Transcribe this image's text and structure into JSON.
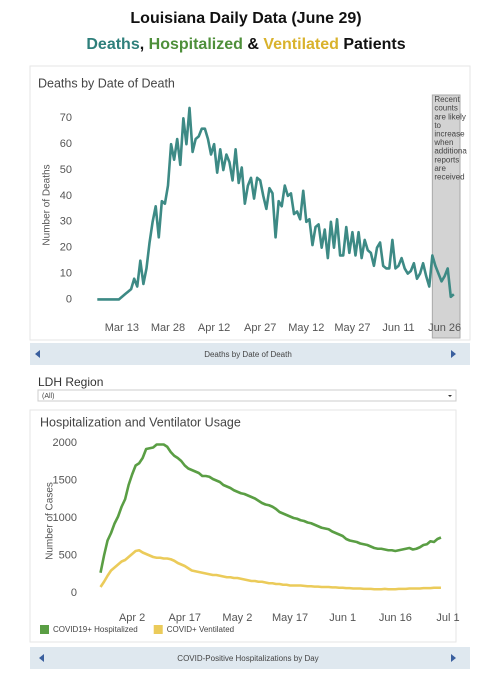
{
  "header": {
    "title": "Louisiana Daily Data (June 29)",
    "subtitle": [
      {
        "text": "Deaths",
        "color": "#2e7f7b"
      },
      {
        "text": ",",
        "color": "#111111"
      },
      {
        "text": "Hospitalized",
        "color": "#4e8f3a"
      },
      {
        "text": "&",
        "color": "#111111"
      },
      {
        "text": "Ventilated",
        "color": "#d9b22c"
      },
      {
        "text": "Patients",
        "color": "#111111"
      }
    ]
  },
  "navigation": [
    "Deaths by Date of Death",
    "COVID-Positive Hospitalizations by Day"
  ],
  "filter": {
    "label": "LDH Region",
    "value": "(All)"
  },
  "chart_data": [
    {
      "type": "line",
      "title": "Deaths by Date of Death",
      "y_label": "Number of Deaths",
      "x": [
        "Mar 5",
        "Mar 6",
        "Mar 7",
        "Mar 8",
        "Mar 9",
        "Mar 10",
        "Mar 11",
        "Mar 12",
        "Mar 13",
        "Mar 14",
        "Mar 15",
        "Mar 16",
        "Mar 17",
        "Mar 18",
        "Mar 19",
        "Mar 20",
        "Mar 21",
        "Mar 22",
        "Mar 23",
        "Mar 24",
        "Mar 25",
        "Mar 26",
        "Mar 27",
        "Mar 28",
        "Mar 29",
        "Mar 30",
        "Mar 31",
        "Apr 1",
        "Apr 2",
        "Apr 3",
        "Apr 4",
        "Apr 5",
        "Apr 6",
        "Apr 7",
        "Apr 8",
        "Apr 9",
        "Apr 10",
        "Apr 11",
        "Apr 12",
        "Apr 13",
        "Apr 14",
        "Apr 15",
        "Apr 16",
        "Apr 17",
        "Apr 18",
        "Apr 19",
        "Apr 20",
        "Apr 21",
        "Apr 22",
        "Apr 23",
        "Apr 24",
        "Apr 25",
        "Apr 26",
        "Apr 27",
        "Apr 28",
        "Apr 29",
        "Apr 30",
        "May 1",
        "May 2",
        "May 3",
        "May 4",
        "May 5",
        "May 6",
        "May 7",
        "May 8",
        "May 9",
        "May 10",
        "May 11",
        "May 12",
        "May 13",
        "May 14",
        "May 15",
        "May 16",
        "May 17",
        "May 18",
        "May 19",
        "May 20",
        "May 21",
        "May 22",
        "May 23",
        "May 24",
        "May 25",
        "May 26",
        "May 27",
        "May 28",
        "May 29",
        "May 30",
        "May 31",
        "Jun 1",
        "Jun 2",
        "Jun 3",
        "Jun 4",
        "Jun 5",
        "Jun 6",
        "Jun 7",
        "Jun 8",
        "Jun 9",
        "Jun 10",
        "Jun 11",
        "Jun 12",
        "Jun 13",
        "Jun 14",
        "Jun 15",
        "Jun 16",
        "Jun 17",
        "Jun 18",
        "Jun 19",
        "Jun 20",
        "Jun 21",
        "Jun 22",
        "Jun 23",
        "Jun 24",
        "Jun 25",
        "Jun 26",
        "Jun 27",
        "Jun 28",
        "Jun 29"
      ],
      "series": [
        {
          "name": "Deaths",
          "color": "#3d8a85",
          "values": [
            0,
            0,
            0,
            0,
            0,
            0,
            0,
            0,
            1,
            2,
            3,
            4,
            8,
            5,
            15,
            6,
            12,
            22,
            30,
            36,
            24,
            38,
            37,
            44,
            60,
            54,
            62,
            52,
            70,
            60,
            74,
            57,
            62,
            63,
            66,
            66,
            62,
            56,
            60,
            49,
            58,
            50,
            56,
            53,
            46,
            58,
            45,
            51,
            37,
            44,
            47,
            39,
            47,
            46,
            40,
            35,
            43,
            41,
            24,
            38,
            36,
            44,
            40,
            41,
            33,
            34,
            31,
            42,
            30,
            31,
            21,
            28,
            29,
            20,
            27,
            16,
            30,
            20,
            31,
            17,
            17,
            28,
            18,
            26,
            17,
            26,
            16,
            23,
            19,
            18,
            13,
            20,
            22,
            13,
            12,
            12,
            23,
            12,
            13,
            16,
            12,
            10,
            11,
            14,
            8,
            10,
            14,
            9,
            5,
            17,
            13,
            10,
            7,
            9,
            12,
            1,
            2
          ]
        }
      ],
      "xlim": [
        "Mar 1",
        "Jul 1"
      ],
      "xticks": [
        "Mar 13",
        "Mar 28",
        "Apr 12",
        "Apr 27",
        "May 12",
        "May 27",
        "Jun 11",
        "Jun 26"
      ],
      "ylim": [
        -6,
        79
      ],
      "yticks": [
        0,
        10,
        20,
        30,
        40,
        50,
        60,
        70
      ],
      "grid": false,
      "shade_from": "Jun 22",
      "shade_color": "#d3d3d3",
      "annotation": [
        "Recent",
        "counts",
        "are likely",
        "to",
        "increase",
        "when",
        "additiona",
        "reports",
        "are",
        "received"
      ]
    },
    {
      "type": "line",
      "title": "Hospitalization and Ventilator Usage",
      "y_label": "Number of Cases",
      "x": [
        "Mar 24",
        "Mar 25",
        "Mar 26",
        "Mar 27",
        "Mar 28",
        "Mar 29",
        "Mar 30",
        "Mar 31",
        "Apr 1",
        "Apr 2",
        "Apr 3",
        "Apr 4",
        "Apr 5",
        "Apr 6",
        "Apr 7",
        "Apr 8",
        "Apr 9",
        "Apr 10",
        "Apr 11",
        "Apr 12",
        "Apr 13",
        "Apr 14",
        "Apr 15",
        "Apr 16",
        "Apr 17",
        "Apr 18",
        "Apr 19",
        "Apr 20",
        "Apr 21",
        "Apr 22",
        "Apr 23",
        "Apr 24",
        "Apr 25",
        "Apr 26",
        "Apr 27",
        "Apr 28",
        "Apr 29",
        "Apr 30",
        "May 1",
        "May 2",
        "May 3",
        "May 4",
        "May 5",
        "May 6",
        "May 7",
        "May 8",
        "May 9",
        "May 10",
        "May 11",
        "May 12",
        "May 13",
        "May 14",
        "May 15",
        "May 16",
        "May 17",
        "May 18",
        "May 19",
        "May 20",
        "May 21",
        "May 22",
        "May 23",
        "May 24",
        "May 25",
        "May 26",
        "May 27",
        "May 28",
        "May 29",
        "May 30",
        "May 31",
        "Jun 1",
        "Jun 2",
        "Jun 3",
        "Jun 4",
        "Jun 5",
        "Jun 6",
        "Jun 7",
        "Jun 8",
        "Jun 9",
        "Jun 10",
        "Jun 11",
        "Jun 12",
        "Jun 13",
        "Jun 14",
        "Jun 15",
        "Jun 16",
        "Jun 17",
        "Jun 18",
        "Jun 19",
        "Jun 20",
        "Jun 21",
        "Jun 22",
        "Jun 23",
        "Jun 24",
        "Jun 25",
        "Jun 26",
        "Jun 27",
        "Jun 28",
        "Jun 29"
      ],
      "series": [
        {
          "name": "COVID19+ Hospitalized",
          "color": "#5a9e44",
          "values": [
            270,
            500,
            700,
            800,
            927,
            1020,
            1150,
            1250,
            1440,
            1580,
            1700,
            1730,
            1800,
            1920,
            1930,
            1940,
            1980,
            1980,
            1980,
            1950,
            1880,
            1830,
            1800,
            1760,
            1700,
            1660,
            1640,
            1620,
            1600,
            1560,
            1560,
            1550,
            1520,
            1500,
            1480,
            1440,
            1420,
            1400,
            1370,
            1350,
            1330,
            1320,
            1300,
            1280,
            1260,
            1230,
            1200,
            1180,
            1170,
            1150,
            1120,
            1080,
            1060,
            1040,
            1020,
            1000,
            990,
            970,
            960,
            940,
            930,
            910,
            890,
            870,
            860,
            850,
            820,
            800,
            780,
            760,
            720,
            700,
            690,
            680,
            660,
            650,
            640,
            620,
            600,
            590,
            590,
            580,
            570,
            570,
            560,
            570,
            580,
            590,
            600,
            580,
            590,
            610,
            640,
            650,
            690,
            680,
            720,
            740
          ]
        },
        {
          "name": "COVID+ Ventilated",
          "color": "#ebcb5a",
          "values": [
            80,
            150,
            230,
            300,
            340,
            380,
            420,
            440,
            480,
            520,
            560,
            570,
            540,
            520,
            500,
            480,
            470,
            470,
            460,
            460,
            450,
            430,
            400,
            380,
            360,
            330,
            300,
            290,
            280,
            270,
            260,
            250,
            240,
            240,
            230,
            220,
            210,
            210,
            200,
            200,
            190,
            180,
            170,
            160,
            160,
            150,
            150,
            140,
            130,
            130,
            120,
            120,
            110,
            110,
            100,
            100,
            100,
            100,
            95,
            90,
            90,
            85,
            85,
            80,
            80,
            80,
            75,
            75,
            70,
            70,
            65,
            65,
            60,
            60,
            60,
            55,
            55,
            55,
            50,
            50,
            50,
            55,
            50,
            50,
            50,
            55,
            55,
            55,
            60,
            60,
            60,
            60,
            65,
            65,
            65,
            70,
            70,
            70
          ]
        }
      ],
      "xlim": [
        "Mar 21",
        "Jul 3"
      ],
      "xticks": [
        "Apr 2",
        "Apr 17",
        "May 2",
        "May 17",
        "Jun 1",
        "Jun 16",
        "Jul 1"
      ],
      "ylim": [
        -160,
        2080
      ],
      "yticks": [
        0,
        500,
        1000,
        1500,
        2000
      ],
      "grid": false,
      "legend": "bottom"
    }
  ]
}
